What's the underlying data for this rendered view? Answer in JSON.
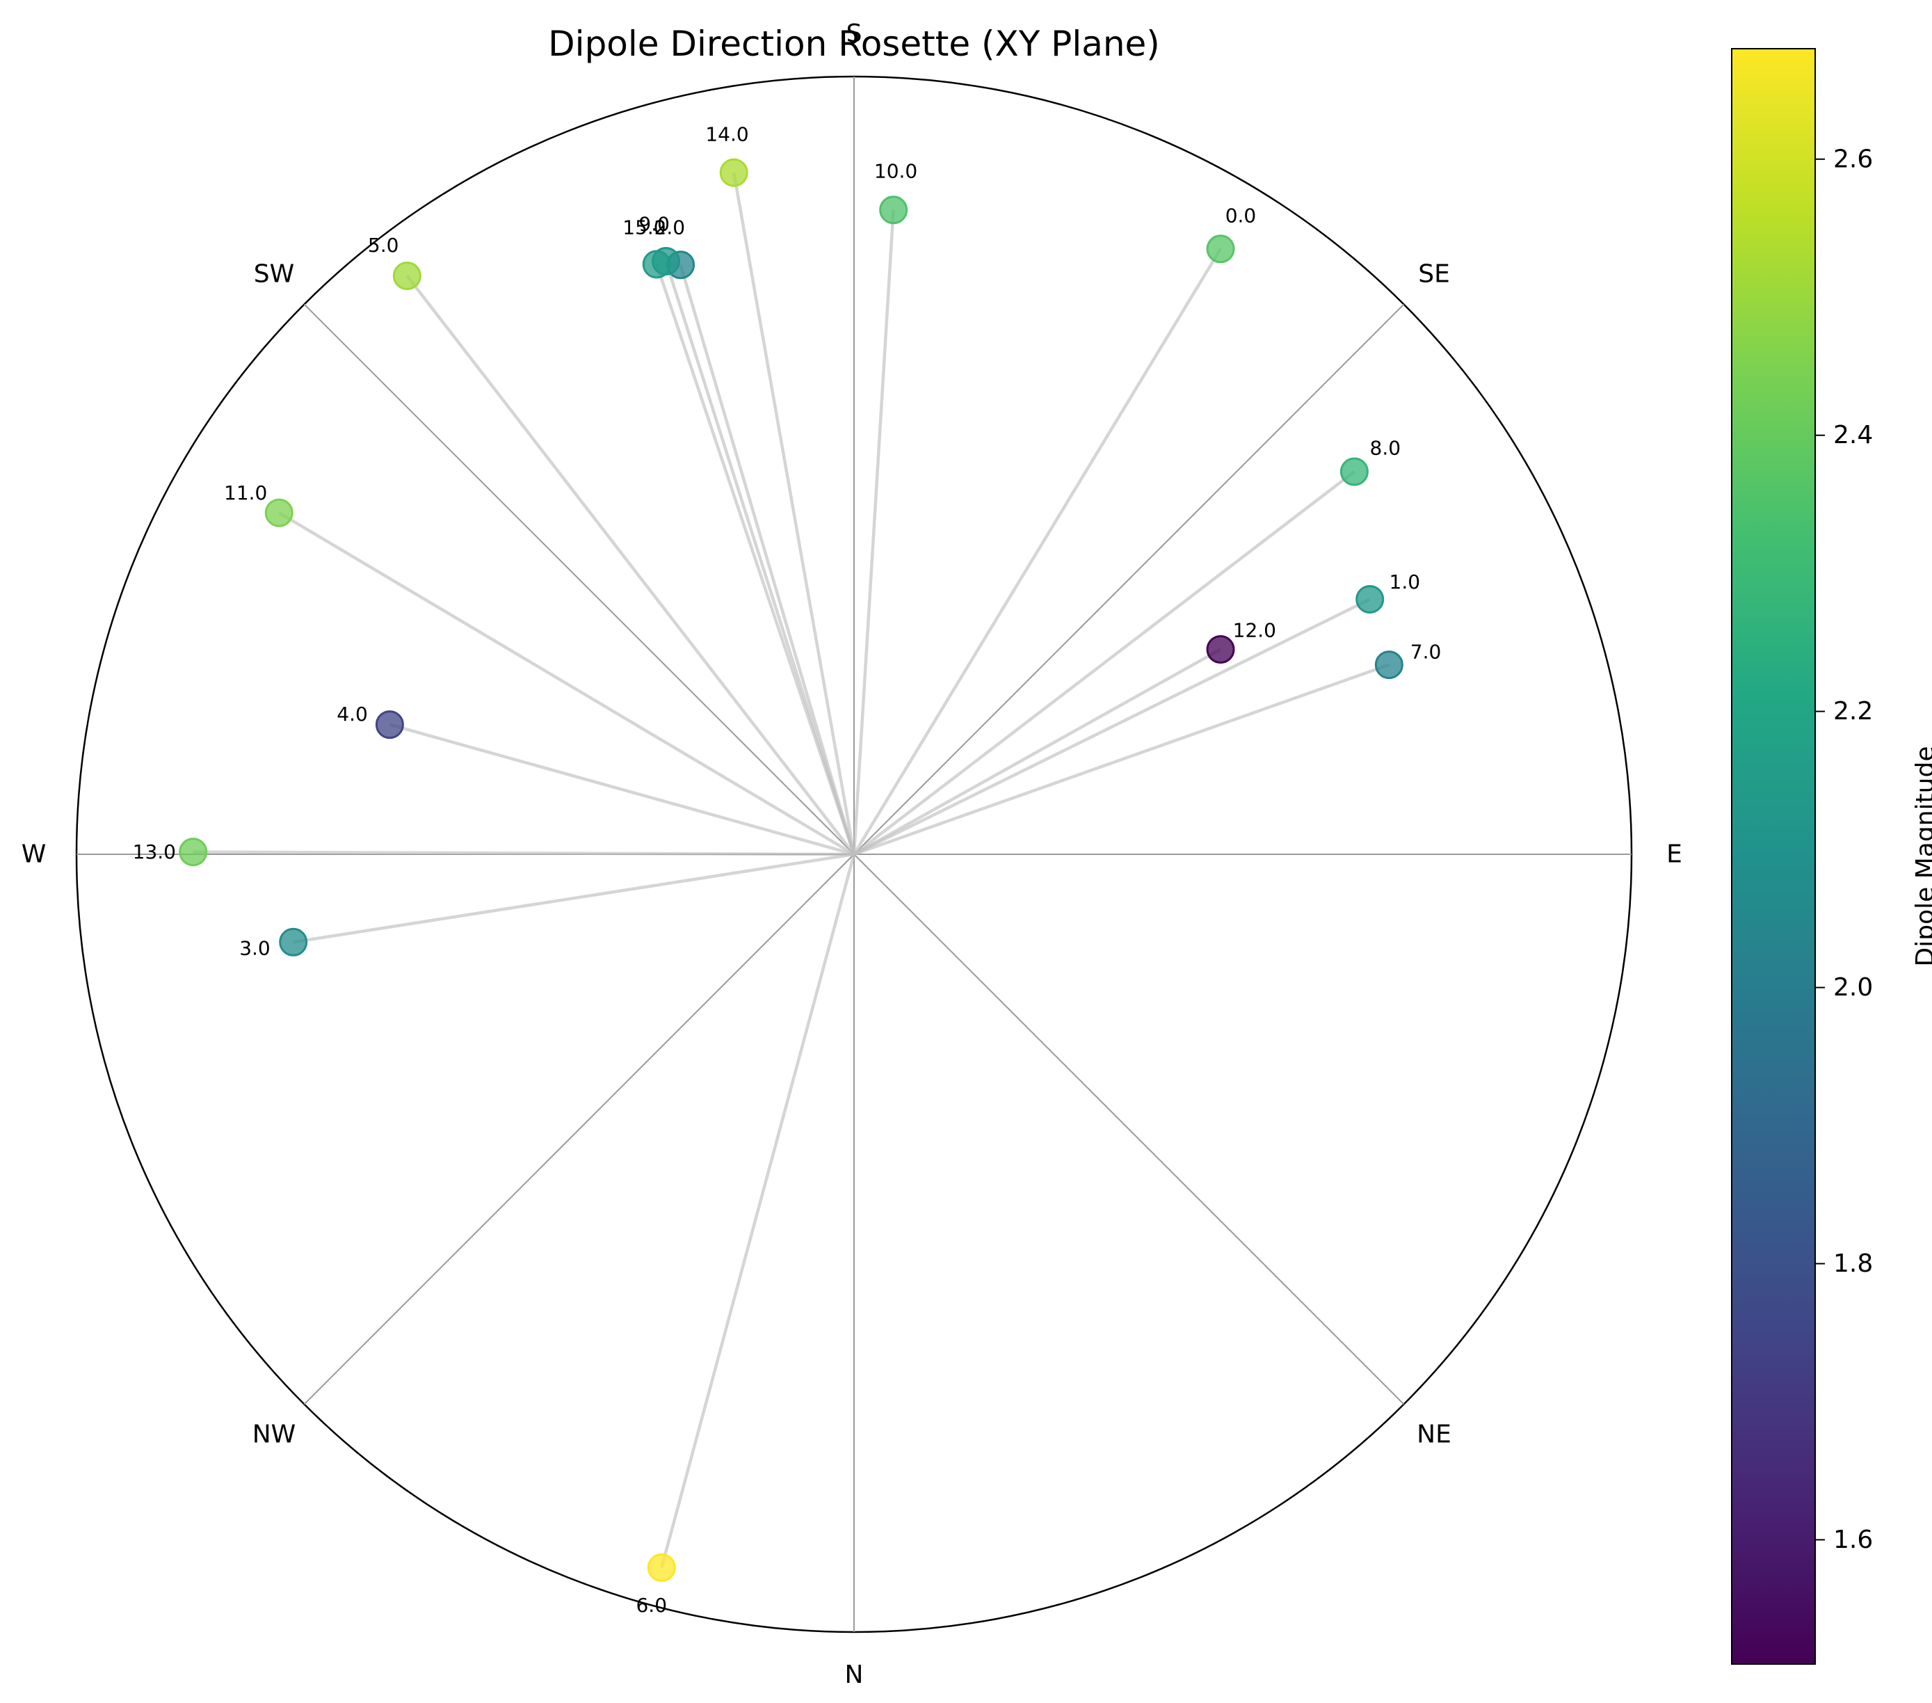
{
  "chart_data": {
    "type": "scatter",
    "subtype": "polar",
    "title": "Dipole Direction Rosette (XY Plane)",
    "direction_labels": [
      "E",
      "NE",
      "N",
      "NW",
      "W",
      "SW",
      "S",
      "SE"
    ],
    "direction_angles_deg": [
      0,
      45,
      90,
      135,
      180,
      225,
      270,
      315
    ],
    "rlim": [
      0,
      1
    ],
    "colorbar": {
      "label": "Dipole Magnitude",
      "colormap": "viridis",
      "vmin": 1.51,
      "vmax": 2.68,
      "ticks": [
        1.6,
        1.8,
        2.0,
        2.2,
        2.4,
        2.6
      ],
      "tick_labels": [
        "1.6",
        "1.8",
        "2.0",
        "2.2",
        "2.4",
        "2.6"
      ]
    },
    "points": [
      {
        "label": "0.0",
        "angle_deg": 301.2,
        "r": 0.91,
        "magnitude": 2.37
      },
      {
        "label": "1.0",
        "angle_deg": 333.7,
        "r": 0.74,
        "magnitude": 2.13
      },
      {
        "label": "2.0",
        "angle_deg": 253.6,
        "r": 0.79,
        "magnitude": 2.05
      },
      {
        "label": "3.0",
        "angle_deg": 171.1,
        "r": 0.73,
        "magnitude": 2.08
      },
      {
        "label": "4.0",
        "angle_deg": 195.6,
        "r": 0.62,
        "magnitude": 1.75
      },
      {
        "label": "5.0",
        "angle_deg": 232.3,
        "r": 0.94,
        "magnitude": 2.51
      },
      {
        "label": "6.0",
        "angle_deg": 105.1,
        "r": 0.95,
        "magnitude": 2.68
      },
      {
        "label": "7.0",
        "angle_deg": 340.5,
        "r": 0.73,
        "magnitude": 2.03
      },
      {
        "label": "8.0",
        "angle_deg": 322.6,
        "r": 0.81,
        "magnitude": 2.28
      },
      {
        "label": "9.0",
        "angle_deg": 252.4,
        "r": 0.8,
        "magnitude": 2.12
      },
      {
        "label": "10.0",
        "angle_deg": 273.5,
        "r": 0.83,
        "magnitude": 2.35
      },
      {
        "label": "11.0",
        "angle_deg": 210.7,
        "r": 0.86,
        "magnitude": 2.45
      },
      {
        "label": "12.0",
        "angle_deg": 330.8,
        "r": 0.54,
        "magnitude": 1.51
      },
      {
        "label": "13.0",
        "angle_deg": 180.2,
        "r": 0.85,
        "magnitude": 2.42
      },
      {
        "label": "14.0",
        "angle_deg": 260.0,
        "r": 0.89,
        "magnitude": 2.53
      },
      {
        "label": "15.0",
        "angle_deg": 251.5,
        "r": 0.8,
        "magnitude": 2.15
      }
    ]
  }
}
